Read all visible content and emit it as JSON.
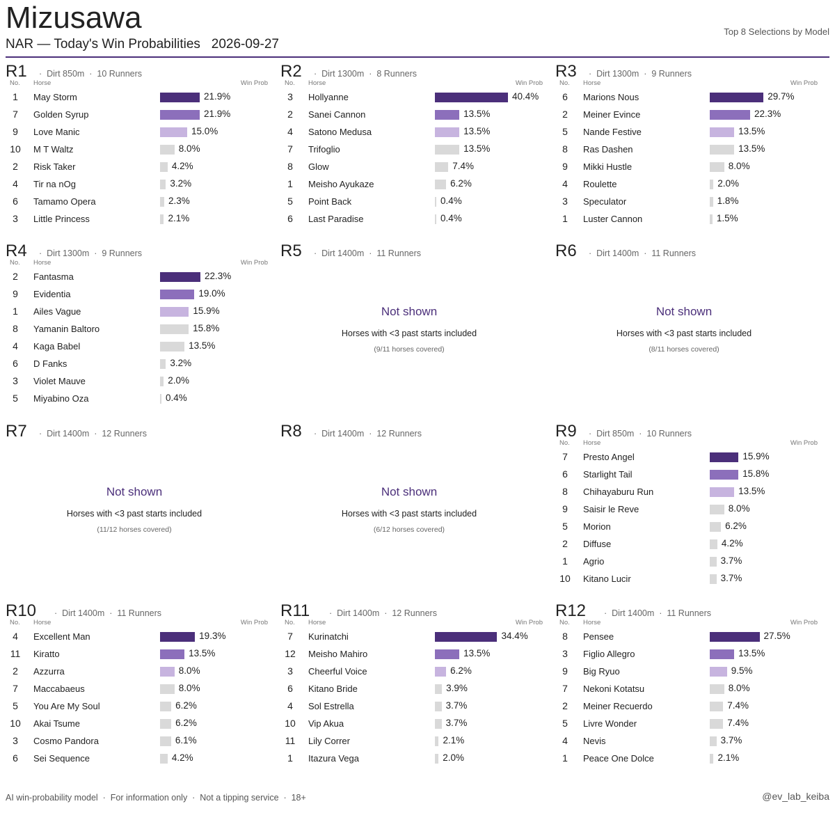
{
  "header": {
    "venue": "Mizusawa",
    "subtitle": "NAR — Today's Win Probabilities   2026-09-27",
    "top_right": "Top 8 Selections by Model"
  },
  "labels": {
    "no": "No.",
    "horse": "Horse",
    "win_prob": "Win Prob",
    "dot": "·"
  },
  "footer": {
    "left": "AI win-probability model  ·  For information only  ·  Not a tipping service  ·  18+",
    "right": "@ev_lab_keiba"
  },
  "colors": {
    "accent": "#4b2f7a",
    "rank1": "#4b2f7a",
    "rank2": "#8c6fbb",
    "rank3": "#c7b4df",
    "other": "#d9d9d9"
  },
  "chart_data": {
    "type": "bar",
    "orientation": "horizontal",
    "races": [
      {
        "race": "R1",
        "surface_distance": "Dirt 850m",
        "runners": "10 Runners",
        "horses": [
          {
            "no": "1",
            "name": "May Storm",
            "pct": 21.9
          },
          {
            "no": "7",
            "name": "Golden Syrup",
            "pct": 21.9
          },
          {
            "no": "9",
            "name": "Love Manic",
            "pct": 15.0
          },
          {
            "no": "10",
            "name": "M T Waltz",
            "pct": 8.0
          },
          {
            "no": "2",
            "name": "Risk Taker",
            "pct": 4.2
          },
          {
            "no": "4",
            "name": "Tir na nOg",
            "pct": 3.2
          },
          {
            "no": "6",
            "name": "Tamamo Opera",
            "pct": 2.3
          },
          {
            "no": "3",
            "name": "Little Princess",
            "pct": 2.1
          }
        ]
      },
      {
        "race": "R2",
        "surface_distance": "Dirt 1300m",
        "runners": "8 Runners",
        "horses": [
          {
            "no": "3",
            "name": "Hollyanne",
            "pct": 40.4
          },
          {
            "no": "2",
            "name": "Sanei Cannon",
            "pct": 13.5
          },
          {
            "no": "4",
            "name": "Satono Medusa",
            "pct": 13.5
          },
          {
            "no": "7",
            "name": "Trifoglio",
            "pct": 13.5
          },
          {
            "no": "8",
            "name": "Glow",
            "pct": 7.4
          },
          {
            "no": "1",
            "name": "Meisho Ayukaze",
            "pct": 6.2
          },
          {
            "no": "5",
            "name": "Point Back",
            "pct": 0.4
          },
          {
            "no": "6",
            "name": "Last Paradise",
            "pct": 0.4
          }
        ]
      },
      {
        "race": "R3",
        "surface_distance": "Dirt 1300m",
        "runners": "9 Runners",
        "horses": [
          {
            "no": "6",
            "name": "Marions Nous",
            "pct": 29.7
          },
          {
            "no": "2",
            "name": "Meiner Evince",
            "pct": 22.3
          },
          {
            "no": "5",
            "name": "Nande Festive",
            "pct": 13.5
          },
          {
            "no": "8",
            "name": "Ras Dashen",
            "pct": 13.5
          },
          {
            "no": "9",
            "name": "Mikki Hustle",
            "pct": 8.0
          },
          {
            "no": "4",
            "name": "Roulette",
            "pct": 2.0
          },
          {
            "no": "3",
            "name": "Speculator",
            "pct": 1.8
          },
          {
            "no": "1",
            "name": "Luster Cannon",
            "pct": 1.5
          }
        ]
      },
      {
        "race": "R4",
        "surface_distance": "Dirt 1300m",
        "runners": "9 Runners",
        "horses": [
          {
            "no": "2",
            "name": "Fantasma",
            "pct": 22.3
          },
          {
            "no": "9",
            "name": "Evidentia",
            "pct": 19.0
          },
          {
            "no": "1",
            "name": "Ailes Vague",
            "pct": 15.9
          },
          {
            "no": "8",
            "name": "Yamanin Baltoro",
            "pct": 15.8
          },
          {
            "no": "4",
            "name": "Kaga Babel",
            "pct": 13.5
          },
          {
            "no": "6",
            "name": "D Fanks",
            "pct": 3.2
          },
          {
            "no": "3",
            "name": "Violet Mauve",
            "pct": 2.0
          },
          {
            "no": "5",
            "name": "Miyabino Oza",
            "pct": 0.4
          }
        ]
      },
      {
        "race": "R5",
        "surface_distance": "Dirt 1400m",
        "runners": "11 Runners",
        "not_shown": "Not shown",
        "note": "Horses with <3 past starts included",
        "coverage": "(9/11 horses covered)"
      },
      {
        "race": "R6",
        "surface_distance": "Dirt 1400m",
        "runners": "11 Runners",
        "not_shown": "Not shown",
        "note": "Horses with <3 past starts included",
        "coverage": "(8/11 horses covered)"
      },
      {
        "race": "R7",
        "surface_distance": "Dirt 1400m",
        "runners": "12 Runners",
        "not_shown": "Not shown",
        "note": "Horses with <3 past starts included",
        "coverage": "(11/12 horses covered)"
      },
      {
        "race": "R8",
        "surface_distance": "Dirt 1400m",
        "runners": "12 Runners",
        "not_shown": "Not shown",
        "note": "Horses with <3 past starts included",
        "coverage": "(6/12 horses covered)"
      },
      {
        "race": "R9",
        "surface_distance": "Dirt 850m",
        "runners": "10 Runners",
        "horses": [
          {
            "no": "7",
            "name": "Presto Angel",
            "pct": 15.9
          },
          {
            "no": "6",
            "name": "Starlight Tail",
            "pct": 15.8
          },
          {
            "no": "8",
            "name": "Chihayaburu Run",
            "pct": 13.5
          },
          {
            "no": "9",
            "name": "Saisir le Reve",
            "pct": 8.0
          },
          {
            "no": "5",
            "name": "Morion",
            "pct": 6.2
          },
          {
            "no": "2",
            "name": "Diffuse",
            "pct": 4.2
          },
          {
            "no": "1",
            "name": "Agrio",
            "pct": 3.7
          },
          {
            "no": "10",
            "name": "Kitano Lucir",
            "pct": 3.7
          }
        ]
      },
      {
        "race": "R10",
        "surface_distance": "Dirt 1400m",
        "runners": "11 Runners",
        "horses": [
          {
            "no": "4",
            "name": "Excellent Man",
            "pct": 19.3
          },
          {
            "no": "11",
            "name": "Kiratto",
            "pct": 13.5
          },
          {
            "no": "2",
            "name": "Azzurra",
            "pct": 8.0
          },
          {
            "no": "7",
            "name": "Maccabaeus",
            "pct": 8.0
          },
          {
            "no": "5",
            "name": "You Are My Soul",
            "pct": 6.2
          },
          {
            "no": "10",
            "name": "Akai Tsume",
            "pct": 6.2
          },
          {
            "no": "3",
            "name": "Cosmo Pandora",
            "pct": 6.1
          },
          {
            "no": "6",
            "name": "Sei Sequence",
            "pct": 4.2
          }
        ]
      },
      {
        "race": "R11",
        "surface_distance": "Dirt 1400m",
        "runners": "12 Runners",
        "horses": [
          {
            "no": "7",
            "name": "Kurinatchi",
            "pct": 34.4
          },
          {
            "no": "12",
            "name": "Meisho Mahiro",
            "pct": 13.5
          },
          {
            "no": "3",
            "name": "Cheerful Voice",
            "pct": 6.2
          },
          {
            "no": "6",
            "name": "Kitano Bride",
            "pct": 3.9
          },
          {
            "no": "4",
            "name": "Sol Estrella",
            "pct": 3.7
          },
          {
            "no": "10",
            "name": "Vip Akua",
            "pct": 3.7
          },
          {
            "no": "11",
            "name": "Lily Correr",
            "pct": 2.1
          },
          {
            "no": "1",
            "name": "Itazura Vega",
            "pct": 2.0
          }
        ]
      },
      {
        "race": "R12",
        "surface_distance": "Dirt 1400m",
        "runners": "11 Runners",
        "horses": [
          {
            "no": "8",
            "name": "Pensee",
            "pct": 27.5
          },
          {
            "no": "3",
            "name": "Figlio Allegro",
            "pct": 13.5
          },
          {
            "no": "9",
            "name": "Big Ryuo",
            "pct": 9.5
          },
          {
            "no": "7",
            "name": "Nekoni Kotatsu",
            "pct": 8.0
          },
          {
            "no": "2",
            "name": "Meiner Recuerdo",
            "pct": 7.4
          },
          {
            "no": "5",
            "name": "Livre Wonder",
            "pct": 7.4
          },
          {
            "no": "4",
            "name": "Nevis",
            "pct": 3.7
          },
          {
            "no": "1",
            "name": "Peace One Dolce",
            "pct": 2.1
          }
        ]
      }
    ]
  }
}
